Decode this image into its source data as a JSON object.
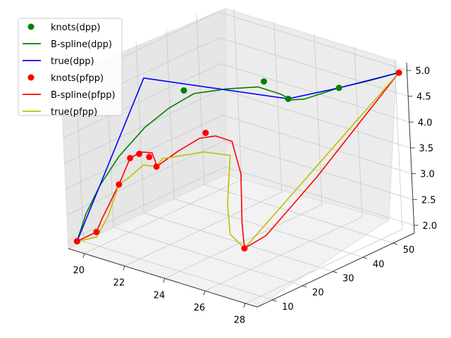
{
  "chart_data": {
    "type": "line3d",
    "title": "",
    "xlabel": "",
    "ylabel": "",
    "zlabel": "",
    "x_ticks": [
      "20",
      "22",
      "24",
      "26",
      "28"
    ],
    "y_ticks": [
      "10",
      "20",
      "30",
      "40",
      "50"
    ],
    "z_ticks": [
      "2.0",
      "2.5",
      "3.0",
      "3.5",
      "4.0",
      "4.5",
      "5.0"
    ],
    "xlim": [
      19.2,
      28.6
    ],
    "ylim": [
      5,
      57
    ],
    "zlim": [
      1.85,
      5.15
    ],
    "grid": true,
    "legend_position": "upper-left",
    "series": [
      {
        "name": "knots(dpp)",
        "kind": "markers",
        "color": "#008000",
        "points": [
          [
            19.5,
            6,
            2.0
          ],
          [
            21.5,
            30,
            4.5
          ],
          [
            24,
            40,
            4.7
          ],
          [
            25.5,
            38,
            4.6
          ],
          [
            27,
            45,
            4.8
          ],
          [
            28.5,
            55,
            5.0
          ]
        ]
      },
      {
        "name": "B-spline(dpp)",
        "kind": "line",
        "color": "#008000",
        "points": [
          [
            19.5,
            6,
            2.0
          ],
          [
            19.7,
            8,
            2.5
          ],
          [
            20,
            11,
            3.0
          ],
          [
            20.4,
            15,
            3.5
          ],
          [
            21,
            20,
            4.0
          ],
          [
            21.5,
            25,
            4.3
          ],
          [
            22,
            30,
            4.5
          ],
          [
            23,
            34,
            4.6
          ],
          [
            24,
            38,
            4.65
          ],
          [
            25,
            39,
            4.6
          ],
          [
            25.5,
            39,
            4.55
          ],
          [
            26,
            40,
            4.6
          ],
          [
            27,
            45,
            4.8
          ],
          [
            27.8,
            50,
            4.9
          ],
          [
            28.5,
            55,
            5.0
          ]
        ]
      },
      {
        "name": "true(dpp)",
        "kind": "line",
        "color": "#0000ff",
        "points": [
          [
            19.5,
            6,
            2.0
          ],
          [
            19.5,
            30,
            4.5
          ],
          [
            25.5,
            38,
            4.6
          ],
          [
            27,
            45,
            4.8
          ],
          [
            28.5,
            55,
            5.0
          ]
        ]
      },
      {
        "name": "knots(pfpp)",
        "kind": "markers",
        "color": "#ff0000",
        "points": [
          [
            19.5,
            6,
            2.0
          ],
          [
            20.5,
            6,
            2.3
          ],
          [
            20.5,
            14,
            3.0
          ],
          [
            20.5,
            18,
            3.4
          ],
          [
            20.5,
            21,
            3.4
          ],
          [
            21,
            21,
            3.4
          ],
          [
            21.5,
            20,
            3.3
          ],
          [
            22.5,
            30,
            3.8
          ],
          [
            27,
            12,
            2.6
          ],
          [
            28.5,
            55,
            5.0
          ]
        ]
      },
      {
        "name": "B-spline(pfpp)",
        "kind": "line",
        "color": "#ff0000",
        "points": [
          [
            19.5,
            6,
            2.0
          ],
          [
            20,
            6,
            2.15
          ],
          [
            20.5,
            6,
            2.3
          ],
          [
            20.5,
            8,
            2.5
          ],
          [
            20.5,
            14,
            3.0
          ],
          [
            20.5,
            18,
            3.4
          ],
          [
            20.6,
            21,
            3.45
          ],
          [
            21,
            22,
            3.45
          ],
          [
            21.3,
            21,
            3.35
          ],
          [
            21.5,
            20,
            3.3
          ],
          [
            22,
            24,
            3.55
          ],
          [
            22.5,
            28,
            3.75
          ],
          [
            23,
            30,
            3.8
          ],
          [
            23.5,
            32,
            3.7
          ],
          [
            24.5,
            28,
            3.3
          ],
          [
            26,
            18,
            2.8
          ],
          [
            27,
            12,
            2.6
          ],
          [
            27.5,
            16,
            2.8
          ],
          [
            28,
            30,
            3.6
          ],
          [
            28.5,
            55,
            5.0
          ]
        ]
      },
      {
        "name": "true(pfpp)",
        "kind": "line",
        "color": "#bfbf00",
        "points": [
          [
            19.5,
            6,
            2.0
          ],
          [
            20,
            6,
            2.1
          ],
          [
            20.5,
            6,
            2.2
          ],
          [
            20.5,
            10,
            2.5
          ],
          [
            20.5,
            14,
            3.0
          ],
          [
            20.7,
            16,
            3.1
          ],
          [
            21,
            19,
            3.3
          ],
          [
            21.5,
            20,
            3.3
          ],
          [
            21.5,
            22,
            3.4
          ],
          [
            23,
            26,
            3.6
          ],
          [
            24,
            28,
            3.6
          ],
          [
            25,
            20,
            3.0
          ],
          [
            26,
            14,
            2.7
          ],
          [
            27,
            12,
            2.6
          ],
          [
            28.5,
            55,
            5.0
          ]
        ]
      }
    ]
  }
}
